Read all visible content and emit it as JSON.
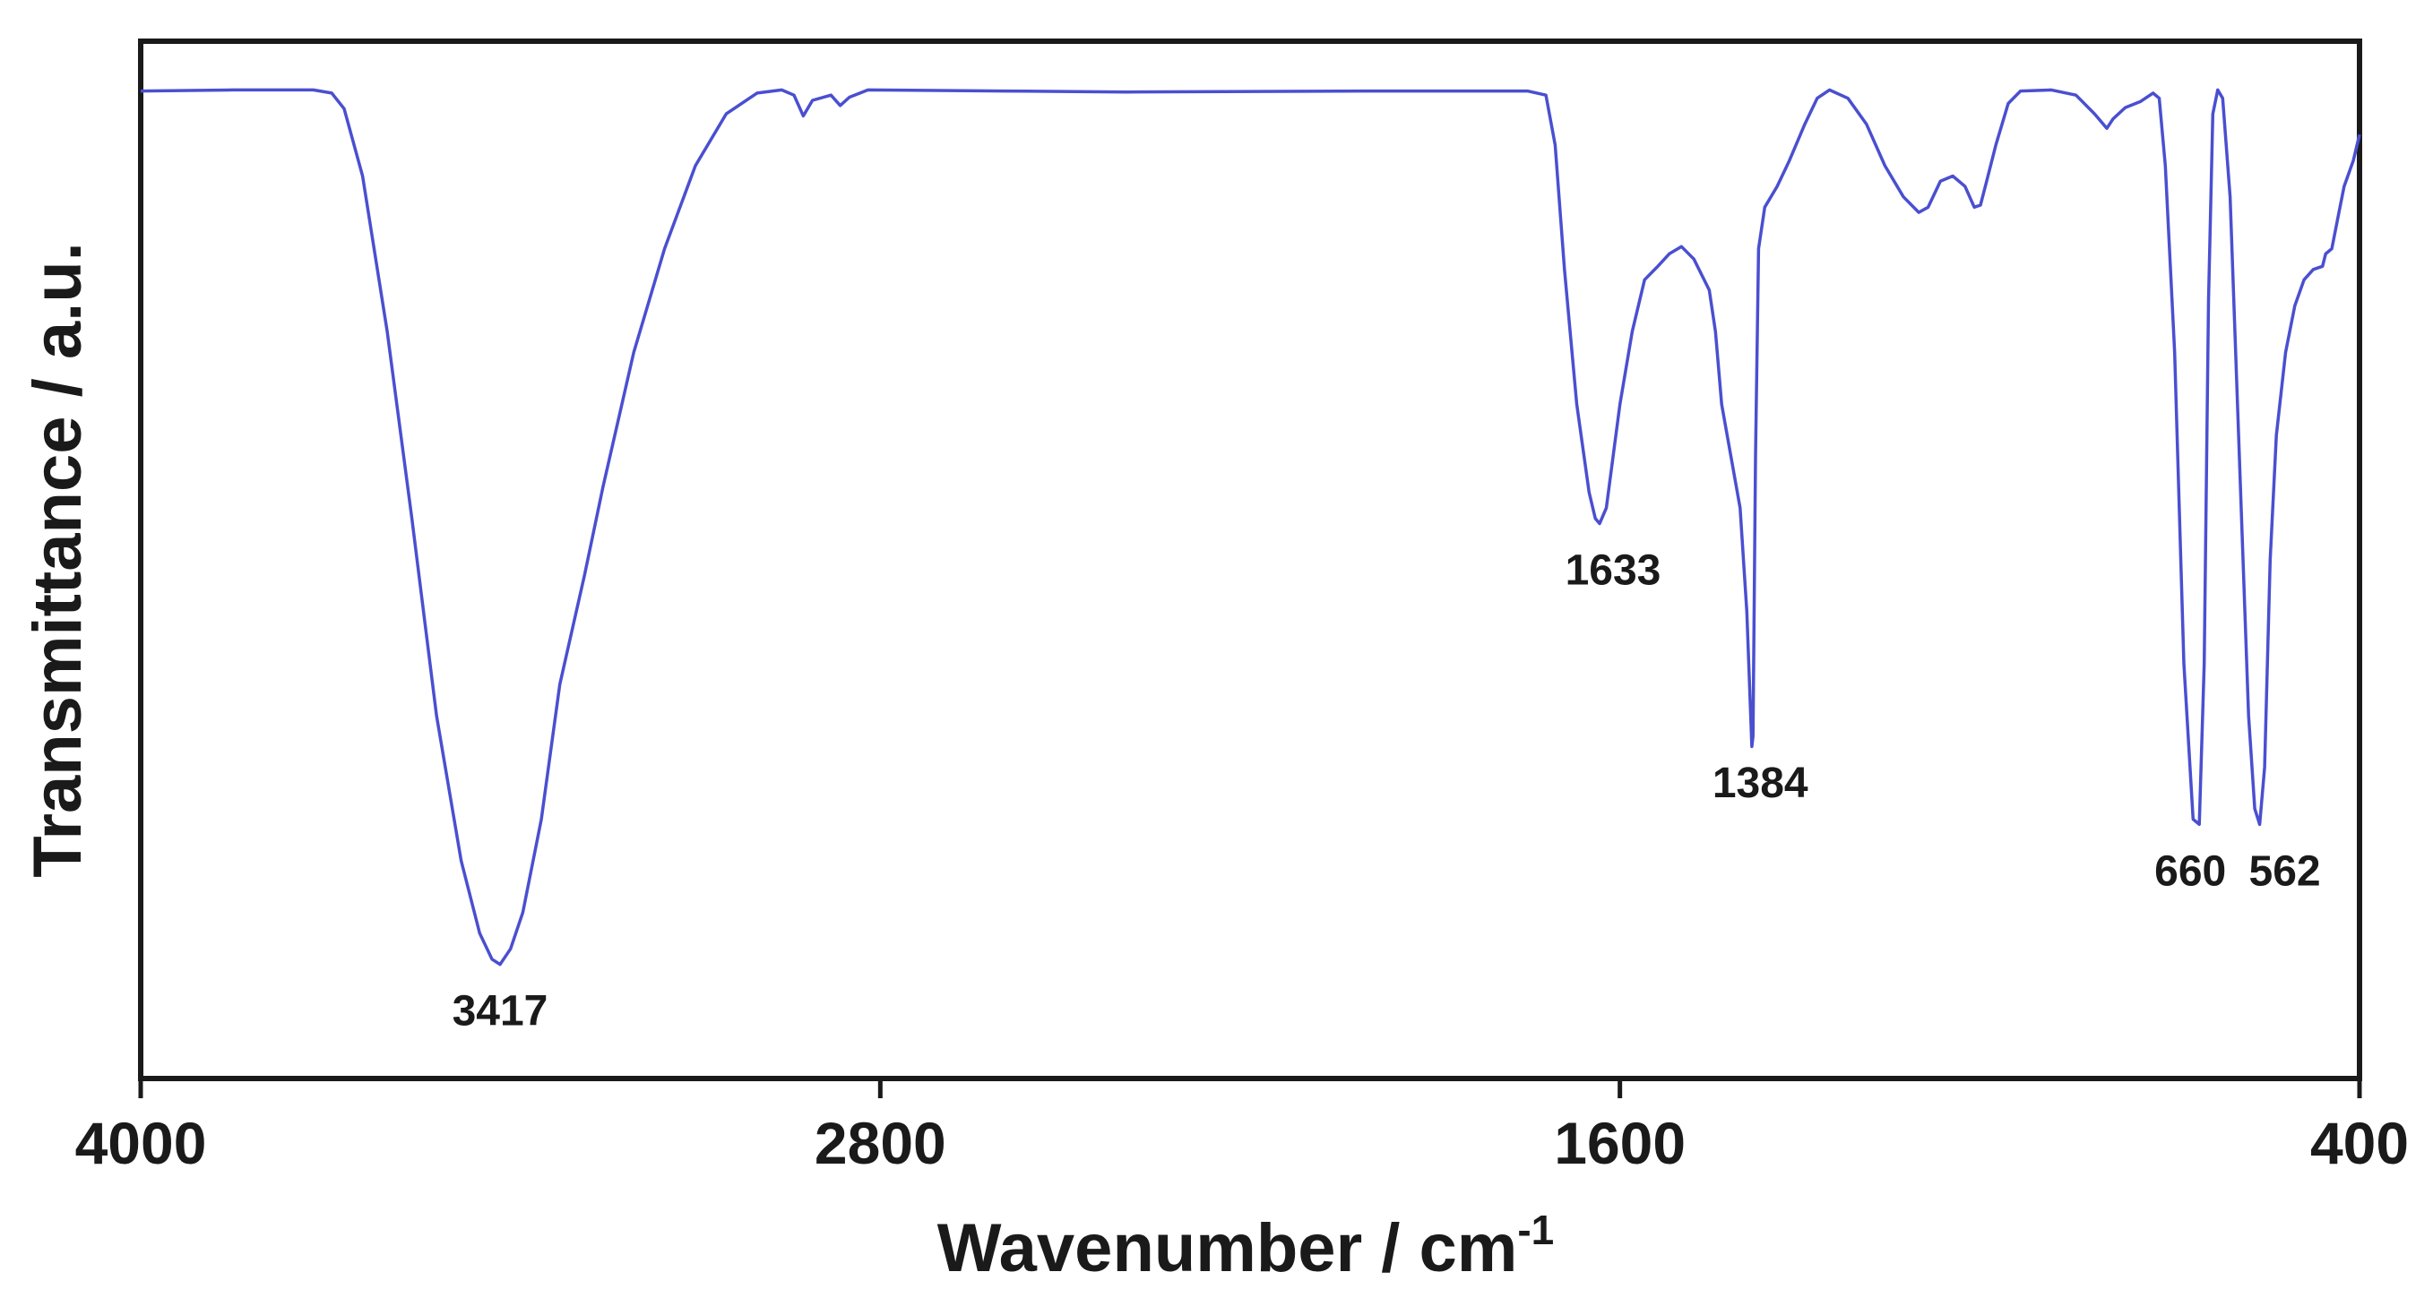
{
  "chart_data": {
    "type": "line",
    "title": "",
    "xlabel": "Wavenumber / cm",
    "xlabel_superscript": "-1",
    "ylabel": "Transmittance / a.u.",
    "xlim": [
      4000,
      400
    ],
    "ylim": [
      0,
      100
    ],
    "x_reversed": true,
    "y_ticks_shown": false,
    "grid": false,
    "legend": "none",
    "xticks": [
      4000,
      2800,
      1600,
      400
    ],
    "xtick_labels": [
      "4000",
      "2800",
      "1600",
      "400"
    ],
    "series": [
      {
        "color": "#4a4fd0",
        "points": [
          [
            4000,
            95.2
          ],
          [
            3850,
            95.3
          ],
          [
            3720,
            95.3
          ],
          [
            3690,
            95.0
          ],
          [
            3670,
            93.5
          ],
          [
            3640,
            87.0
          ],
          [
            3600,
            72.0
          ],
          [
            3560,
            54.0
          ],
          [
            3520,
            35.0
          ],
          [
            3480,
            21.0
          ],
          [
            3450,
            14.0
          ],
          [
            3430,
            11.5
          ],
          [
            3417,
            11.0
          ],
          [
            3400,
            12.5
          ],
          [
            3380,
            16.0
          ],
          [
            3350,
            25.0
          ],
          [
            3320,
            38.0
          ],
          [
            3280,
            48.5
          ],
          [
            3250,
            57.0
          ],
          [
            3200,
            70.0
          ],
          [
            3150,
            80.0
          ],
          [
            3100,
            88.0
          ],
          [
            3050,
            93.0
          ],
          [
            3000,
            95.0
          ],
          [
            2960,
            95.3
          ],
          [
            2940,
            94.8
          ],
          [
            2925,
            92.8
          ],
          [
            2910,
            94.3
          ],
          [
            2880,
            94.8
          ],
          [
            2865,
            93.8
          ],
          [
            2850,
            94.6
          ],
          [
            2820,
            95.3
          ],
          [
            2600,
            95.2
          ],
          [
            2400,
            95.1
          ],
          [
            2000,
            95.2
          ],
          [
            1750,
            95.2
          ],
          [
            1720,
            94.8
          ],
          [
            1705,
            90.0
          ],
          [
            1690,
            78.0
          ],
          [
            1670,
            65.0
          ],
          [
            1650,
            56.5
          ],
          [
            1640,
            54.0
          ],
          [
            1633,
            53.5
          ],
          [
            1622,
            55.0
          ],
          [
            1600,
            65.0
          ],
          [
            1580,
            72.0
          ],
          [
            1560,
            77.0
          ],
          [
            1540,
            78.2
          ],
          [
            1520,
            79.5
          ],
          [
            1500,
            80.2
          ],
          [
            1480,
            79.0
          ],
          [
            1455,
            76.0
          ],
          [
            1445,
            72.0
          ],
          [
            1435,
            65.0
          ],
          [
            1420,
            60.0
          ],
          [
            1405,
            55.0
          ],
          [
            1394,
            45.0
          ],
          [
            1386,
            32.0
          ],
          [
            1384,
            33.0
          ],
          [
            1380,
            60.0
          ],
          [
            1375,
            80.0
          ],
          [
            1365,
            84.0
          ],
          [
            1345,
            86.0
          ],
          [
            1325,
            88.5
          ],
          [
            1300,
            92.0
          ],
          [
            1280,
            94.5
          ],
          [
            1260,
            95.3
          ],
          [
            1230,
            94.5
          ],
          [
            1200,
            92.0
          ],
          [
            1170,
            88.0
          ],
          [
            1140,
            85.0
          ],
          [
            1115,
            83.5
          ],
          [
            1100,
            84.0
          ],
          [
            1080,
            86.5
          ],
          [
            1060,
            87.0
          ],
          [
            1040,
            86.0
          ],
          [
            1025,
            84.0
          ],
          [
            1015,
            84.2
          ],
          [
            1005,
            86.5
          ],
          [
            990,
            90.0
          ],
          [
            970,
            94.0
          ],
          [
            950,
            95.2
          ],
          [
            900,
            95.3
          ],
          [
            860,
            94.8
          ],
          [
            830,
            93.0
          ],
          [
            810,
            91.6
          ],
          [
            800,
            92.5
          ],
          [
            780,
            93.6
          ],
          [
            755,
            94.2
          ],
          [
            735,
            95.0
          ],
          [
            725,
            94.5
          ],
          [
            715,
            88.0
          ],
          [
            700,
            70.0
          ],
          [
            685,
            40.0
          ],
          [
            670,
            25.0
          ],
          [
            660,
            24.5
          ],
          [
            652,
            40.0
          ],
          [
            645,
            75.0
          ],
          [
            638,
            93.0
          ],
          [
            630,
            95.3
          ],
          [
            622,
            94.5
          ],
          [
            610,
            85.0
          ],
          [
            595,
            60.0
          ],
          [
            580,
            35.0
          ],
          [
            570,
            26.0
          ],
          [
            562,
            24.5
          ],
          [
            554,
            30.0
          ],
          [
            545,
            50.0
          ],
          [
            535,
            62.0
          ],
          [
            520,
            70.0
          ],
          [
            505,
            74.5
          ],
          [
            490,
            77.0
          ],
          [
            475,
            78.0
          ],
          [
            460,
            78.3
          ],
          [
            455,
            79.5
          ],
          [
            445,
            80.0
          ],
          [
            435,
            83.0
          ],
          [
            425,
            86.0
          ],
          [
            410,
            88.5
          ],
          [
            400,
            91.0
          ]
        ]
      }
    ],
    "annotations": [
      {
        "label": "3417",
        "x": 3417,
        "y": 11.0
      },
      {
        "label": "1633",
        "x": 1633,
        "y": 53.5
      },
      {
        "label": "1384",
        "x": 1384,
        "y": 33.0
      },
      {
        "label": "660",
        "x": 660,
        "y": 24.5
      },
      {
        "label": "562",
        "x": 562,
        "y": 24.5
      }
    ]
  }
}
